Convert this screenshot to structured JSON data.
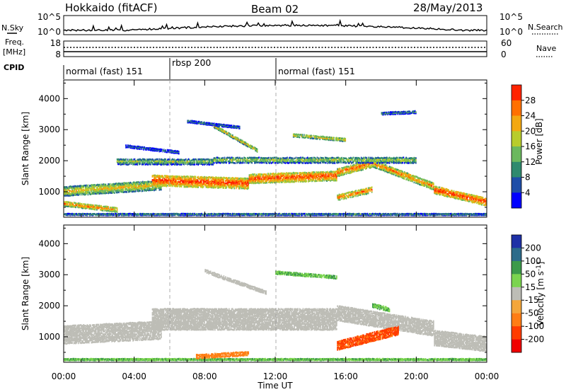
{
  "header": {
    "station": "Hokkaido (fitACF)",
    "beam": "Beam 02",
    "date": "28/May/2013"
  },
  "strip_labels": {
    "nsky": "N.Sky",
    "nsearch": "N.Search",
    "freq_line1": "Freq.",
    "freq_line2": "[MHz]",
    "nave": "Nave",
    "cpid": "CPID"
  },
  "nsky_axis": {
    "left_ticks": [
      "10^5",
      "10^0"
    ],
    "right_ticks": [
      "10^5",
      "10^0"
    ]
  },
  "freq_axis": {
    "left_ticks": [
      "18",
      "8"
    ],
    "right_ticks": [
      "60",
      "0"
    ]
  },
  "cpid_segments": [
    {
      "label": "normal (fast) 151",
      "start_hour": 0
    },
    {
      "label": "rbsp 200",
      "start_hour": 6
    },
    {
      "label": "normal (fast) 151",
      "start_hour": 12
    }
  ],
  "time_axis": {
    "ticks": [
      "00:00",
      "04:00",
      "08:00",
      "12:00",
      "16:00",
      "20:00",
      "00:00"
    ],
    "label": "Time UT"
  },
  "colors": {
    "grey_scatter": "#bdbdb6",
    "background": "#ffffff"
  },
  "chart_data": [
    {
      "type": "heatmap",
      "title": "",
      "xlabel": "",
      "ylabel": "Slant Range [km]",
      "xlim_hours": [
        0,
        24
      ],
      "ylim_km": [
        180,
        4600
      ],
      "yticks": [
        1000,
        2000,
        3000,
        4000
      ],
      "colorbar": {
        "label": "Power [dB]",
        "ticks": [
          "4",
          "8",
          "12",
          "16",
          "20",
          "24",
          "28"
        ],
        "colors": [
          "#0000ff",
          "#1e4ea8",
          "#2f8a6e",
          "#6bb85e",
          "#b8cc2c",
          "#f3a811",
          "#ff7000",
          "#ff2300"
        ]
      },
      "bands": [
        {
          "t0": 0.0,
          "t1": 24.0,
          "r_start": 300,
          "r_end": 300,
          "width": 60,
          "power": 14
        },
        {
          "t0": 0.0,
          "t1": 5.5,
          "r_start": 1050,
          "r_end": 1250,
          "width": 320,
          "power": 22
        },
        {
          "t0": 5.0,
          "t1": 10.5,
          "r_start": 1400,
          "r_end": 1300,
          "width": 360,
          "power": 30
        },
        {
          "t0": 10.5,
          "t1": 15.5,
          "r_start": 1450,
          "r_end": 1550,
          "width": 320,
          "power": 29
        },
        {
          "t0": 15.5,
          "t1": 17.5,
          "r_start": 1650,
          "r_end": 1950,
          "width": 260,
          "power": 27
        },
        {
          "t0": 17.5,
          "t1": 21.0,
          "r_start": 1950,
          "r_end": 1200,
          "width": 240,
          "power": 26
        },
        {
          "t0": 21.0,
          "t1": 24.0,
          "r_start": 1100,
          "r_end": 700,
          "width": 260,
          "power": 30
        },
        {
          "t0": 0.0,
          "t1": 3.0,
          "r_start": 650,
          "r_end": 450,
          "width": 160,
          "power": 26
        },
        {
          "t0": 3.0,
          "t1": 8.5,
          "r_start": 2000,
          "r_end": 2000,
          "width": 200,
          "power": 17
        },
        {
          "t0": 8.5,
          "t1": 20.0,
          "r_start": 2050,
          "r_end": 2050,
          "width": 200,
          "power": 18
        },
        {
          "t0": 15.5,
          "t1": 17.5,
          "r_start": 850,
          "r_end": 1100,
          "width": 200,
          "power": 27
        },
        {
          "t0": 8.5,
          "t1": 11.0,
          "r_start": 3150,
          "r_end": 2350,
          "width": 110,
          "power": 22
        },
        {
          "t0": 13.0,
          "t1": 16.0,
          "r_start": 2850,
          "r_end": 2700,
          "width": 110,
          "power": 22
        },
        {
          "t0": 7.0,
          "t1": 10.0,
          "r_start": 3300,
          "r_end": 3100,
          "width": 80,
          "power": 12
        },
        {
          "t0": 18.0,
          "t1": 20.0,
          "r_start": 3550,
          "r_end": 3600,
          "width": 90,
          "power": 13
        },
        {
          "t0": 3.5,
          "t1": 6.5,
          "r_start": 2500,
          "r_end": 2300,
          "width": 90,
          "power": 10
        }
      ]
    },
    {
      "type": "heatmap",
      "title": "",
      "xlabel": "Time UT",
      "ylabel": "Slant Range [km]",
      "xlim_hours": [
        0,
        24
      ],
      "ylim_km": [
        180,
        4600
      ],
      "yticks": [
        1000,
        2000,
        3000,
        4000
      ],
      "colorbar": {
        "label": "Velocity [m s^-1]",
        "ticks": [
          "200",
          "100",
          "50",
          "15",
          "-15",
          "-50",
          "-100",
          "-200"
        ],
        "colors": [
          "#1e30a6",
          "#2c6b8a",
          "#3c9a4a",
          "#7bd44f",
          "#bdbdb6",
          "#f4a63a",
          "#ff7d14",
          "#ff3c00",
          "#f00000"
        ]
      },
      "bands": [
        {
          "t0": 0.0,
          "t1": 24.0,
          "r_start": 300,
          "r_end": 300,
          "width": 60,
          "velocity": 30
        },
        {
          "t0": 0.0,
          "t1": 5.5,
          "r_start": 1100,
          "r_end": 1250,
          "width": 600,
          "velocity": 0
        },
        {
          "t0": 5.0,
          "t1": 15.5,
          "r_start": 1600,
          "r_end": 1600,
          "width": 700,
          "velocity": 0
        },
        {
          "t0": 15.5,
          "t1": 21.0,
          "r_start": 1800,
          "r_end": 1300,
          "width": 500,
          "velocity": 0
        },
        {
          "t0": 21.0,
          "t1": 24.0,
          "r_start": 1000,
          "r_end": 800,
          "width": 500,
          "velocity": 0
        },
        {
          "t0": 8.0,
          "t1": 11.5,
          "r_start": 3150,
          "r_end": 2450,
          "width": 120,
          "velocity": 0
        },
        {
          "t0": 12.0,
          "t1": 15.5,
          "r_start": 3100,
          "r_end": 2950,
          "width": 110,
          "velocity": 30
        },
        {
          "t0": 15.5,
          "t1": 19.0,
          "r_start": 750,
          "r_end": 1250,
          "width": 300,
          "velocity": -80
        },
        {
          "t0": 7.5,
          "t1": 10.5,
          "r_start": 400,
          "r_end": 500,
          "width": 150,
          "velocity": -40
        },
        {
          "t0": 17.5,
          "t1": 18.5,
          "r_start": 2050,
          "r_end": 1900,
          "width": 150,
          "velocity": 30
        }
      ]
    }
  ]
}
